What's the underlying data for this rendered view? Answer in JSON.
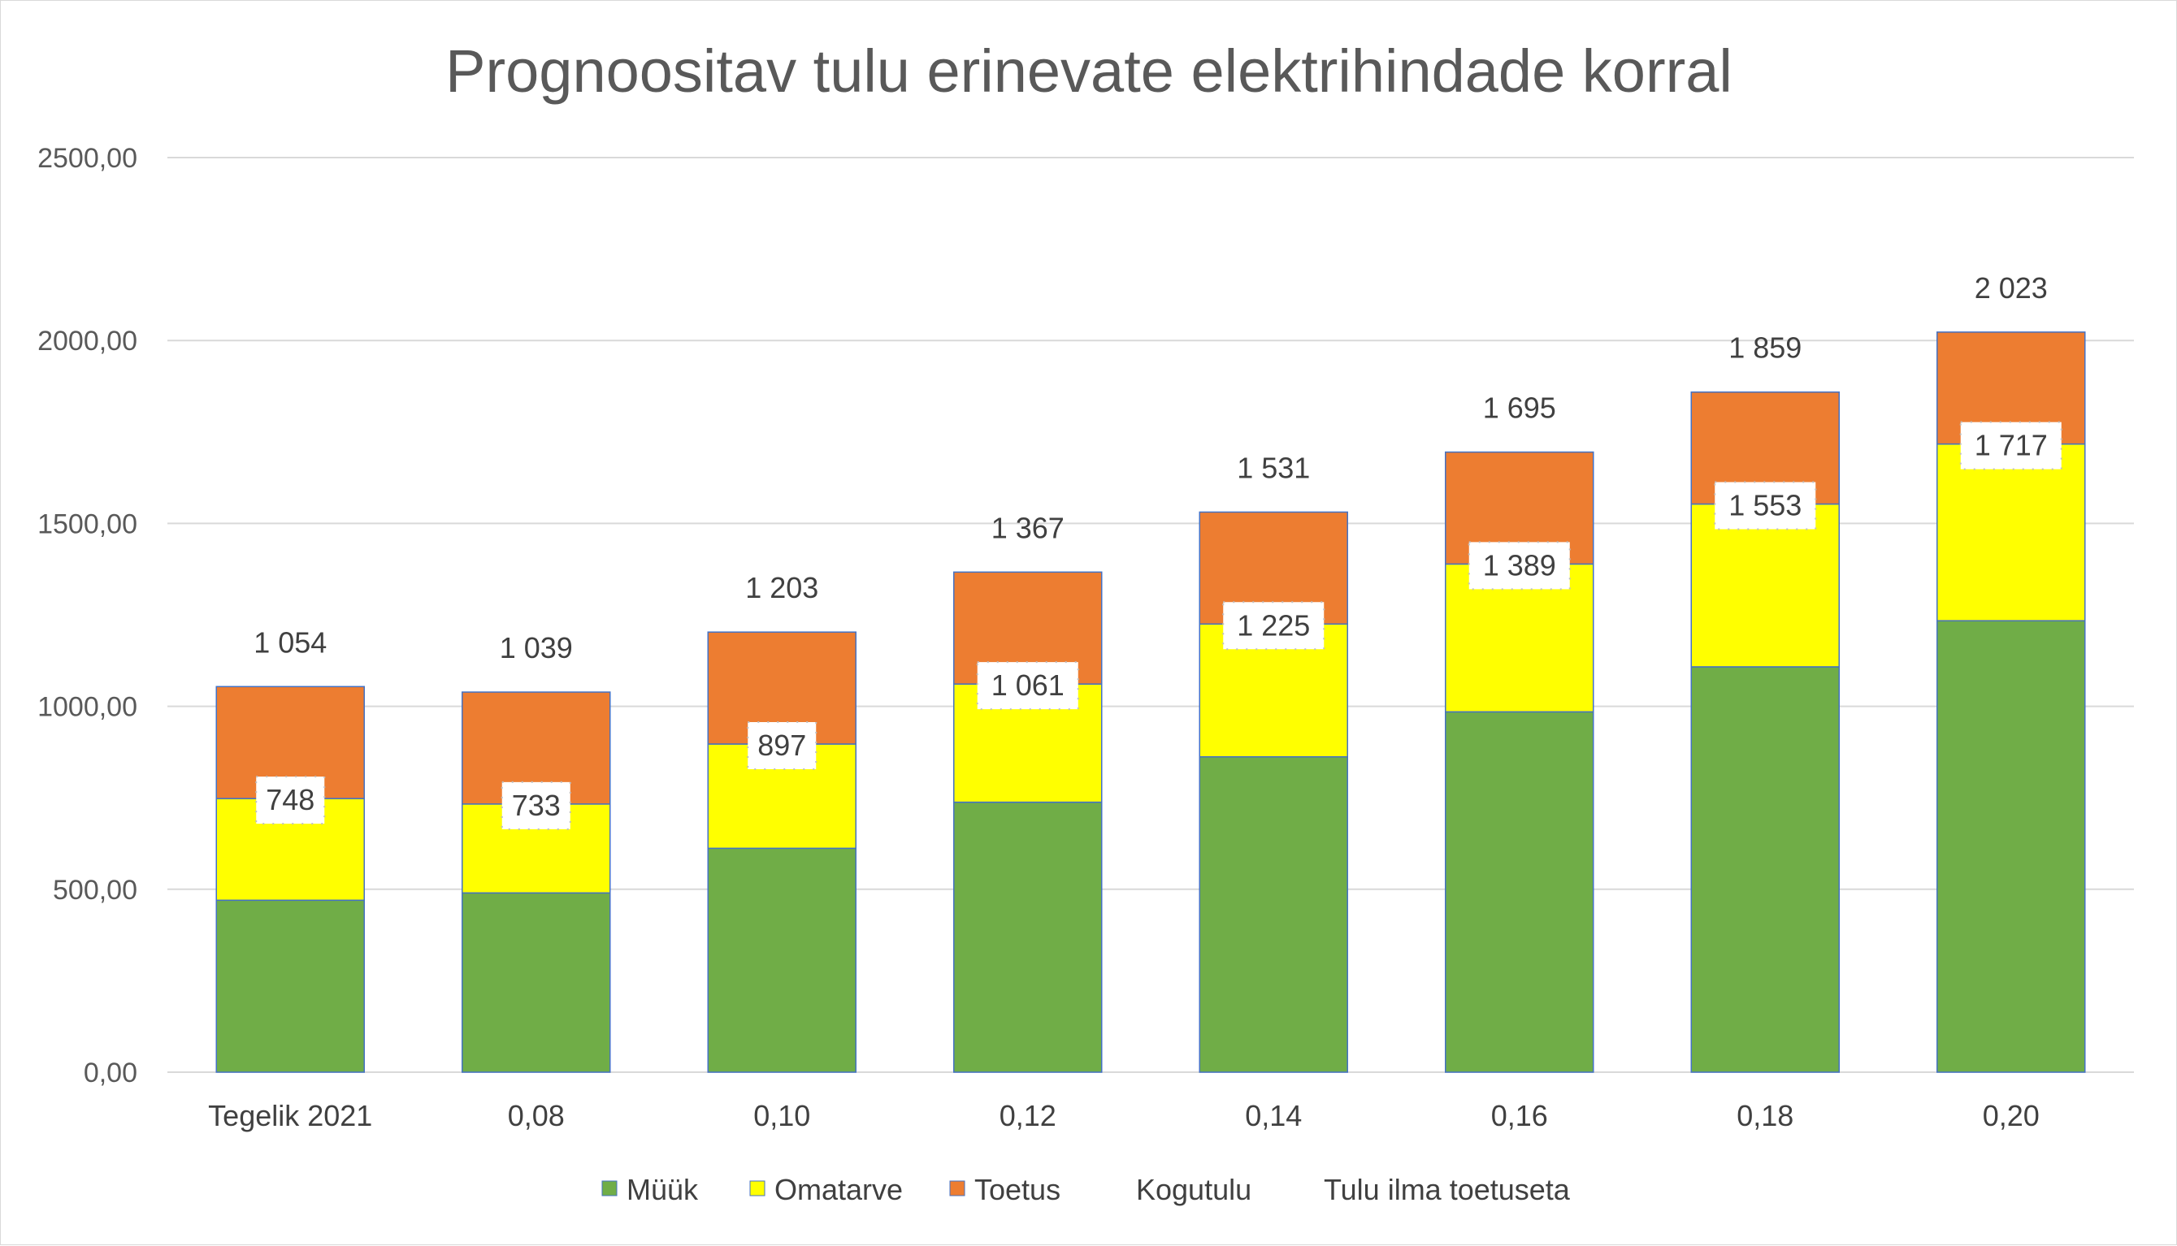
{
  "chart_data": {
    "type": "bar",
    "stacked": true,
    "title": "Prognoositav tulu erinevate elektrihindade korral",
    "xlabel": "",
    "ylabel": "",
    "ylim": [
      0,
      2500
    ],
    "yticks": [
      "0,00",
      "500,00",
      "1000,00",
      "1500,00",
      "2000,00",
      "2500,00"
    ],
    "ytick_values": [
      0,
      500,
      1000,
      1500,
      2000,
      2500
    ],
    "grid": true,
    "legend_position": "bottom",
    "categories": [
      "Tegelik 2021",
      "0,08",
      "0,10",
      "0,12",
      "0,14",
      "0,16",
      "0,18",
      "0,20"
    ],
    "series": [
      {
        "name": "Müük",
        "color": "#70ad47",
        "values": [
          470,
          490,
          612,
          738,
          862,
          985,
          1108,
          1234
        ]
      },
      {
        "name": "Omatarve",
        "color": "#ffff00",
        "values": [
          278,
          243,
          285,
          323,
          363,
          404,
          445,
          483
        ]
      },
      {
        "name": "Toetus",
        "color": "#ed7d31",
        "values": [
          306,
          306,
          306,
          306,
          306,
          306,
          306,
          306
        ]
      }
    ],
    "line_series": [
      {
        "name": "Kogutulu",
        "values": [
          1054,
          1039,
          1203,
          1367,
          1531,
          1695,
          1859,
          2023
        ],
        "labels": [
          "1 054",
          "1 039",
          "1 203",
          "1 367",
          "1 531",
          "1 695",
          "1 859",
          "2 023"
        ]
      },
      {
        "name": "Tulu ilma toetuseta",
        "values": [
          748,
          733,
          897,
          1061,
          1225,
          1389,
          1553,
          1717
        ],
        "labels": [
          "748",
          "733",
          "897",
          "1 061",
          "1 225",
          "1 389",
          "1 553",
          "1 717"
        ]
      }
    ],
    "colors": {
      "grid": "#d9d9d9",
      "bar_border": "#4472c4",
      "label_box": "#ffffff",
      "label_box_border": "#bfbfbf",
      "text": "#404040"
    }
  }
}
